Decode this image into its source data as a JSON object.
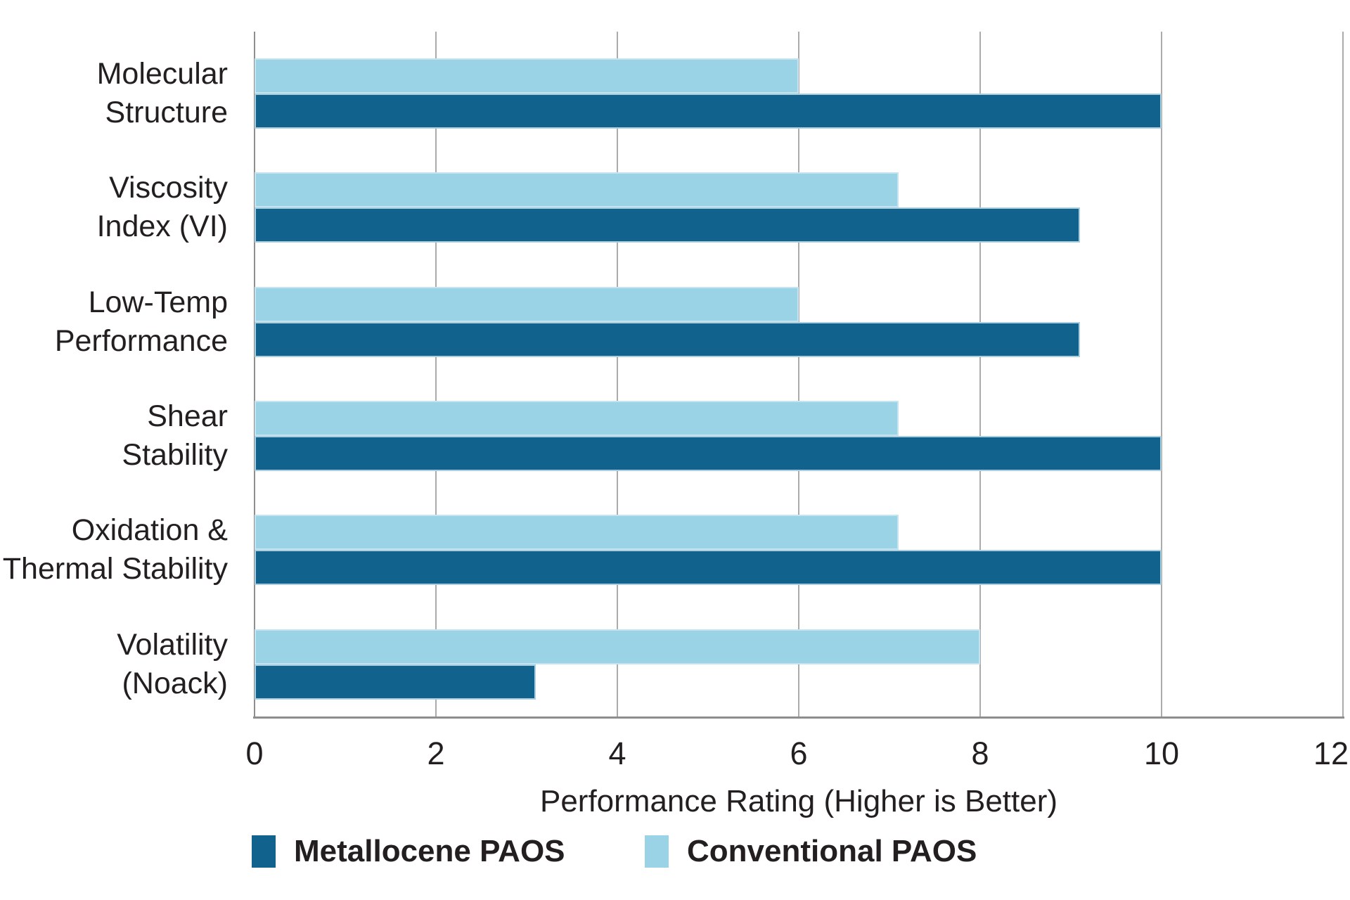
{
  "chart_data": {
    "type": "bar",
    "orientation": "horizontal",
    "title": "",
    "xlabel": "Performance Rating (Higher is Better)",
    "xlim": [
      0,
      12
    ],
    "xticks": [
      0,
      2,
      4,
      6,
      8,
      10,
      12
    ],
    "grid": "vertical",
    "legend_position": "bottom",
    "categories": [
      "Molecular Structure",
      "Viscosity Index (VI)",
      "Low-Temp Performance",
      "Shear Stability",
      "Oxidation & Thermal Stability",
      "Volatility (Noack)"
    ],
    "category_label_lines": [
      [
        "Molecular",
        "Structure"
      ],
      [
        "Viscosity",
        "Index (VI)"
      ],
      [
        "Low-Temp",
        "Performance"
      ],
      [
        "Shear",
        "Stability"
      ],
      [
        "Oxidation &",
        "Thermal Stability"
      ],
      [
        "Volatility",
        "(Noack)"
      ]
    ],
    "series": [
      {
        "name": "Metallocene PAOS",
        "color": "#11638E",
        "row_in_group": "bottom",
        "values": [
          10,
          9.1,
          9.1,
          10,
          10,
          3.1
        ]
      },
      {
        "name": "Conventional PAOS",
        "color": "#9AD3E5",
        "row_in_group": "top",
        "values": [
          6,
          7.1,
          6,
          7.1,
          7.1,
          8
        ]
      }
    ],
    "colors": {
      "background": "#FFFFFF",
      "gridline": "#ABABAB",
      "axis_line": "#8E8E8E",
      "text": "#231F20"
    }
  }
}
